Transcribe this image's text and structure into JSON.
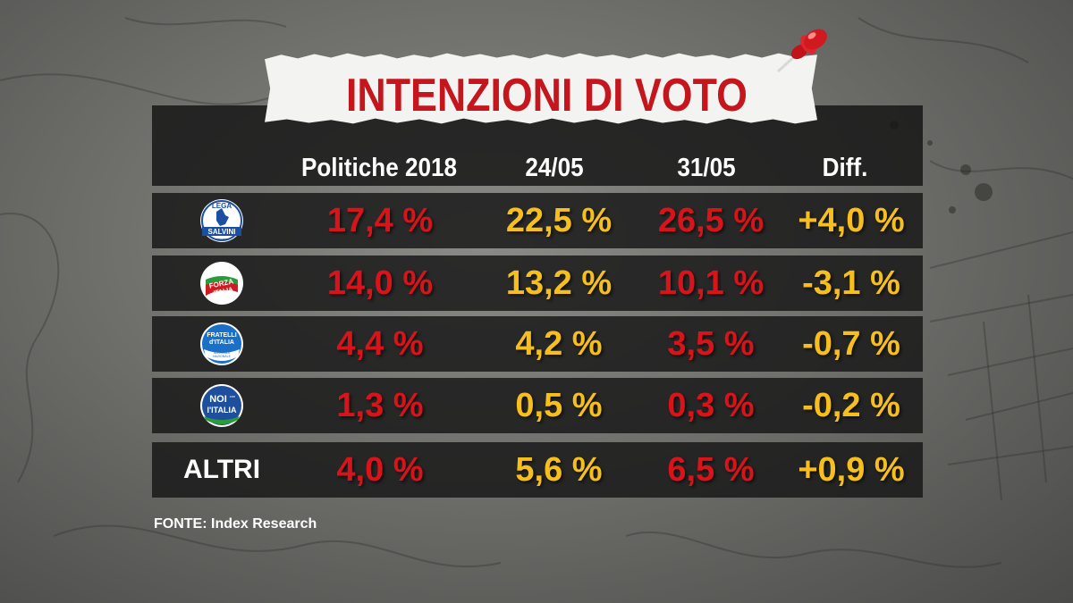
{
  "title": "INTENZIONI DI VOTO",
  "source": "FONTE:  Index Research",
  "colors": {
    "title": "#c4161c",
    "value_red": "#d8141a",
    "value_yellow": "#f6bf1d",
    "row_bg": "#181818"
  },
  "chart_data": {
    "type": "table",
    "columns": [
      "Politiche 2018",
      "24/05",
      "31/05",
      "Diff."
    ],
    "rows": [
      {
        "party": "Lega Salvini Premier",
        "logo_icon": "lega-logo-icon",
        "logo_text": [
          "LEGA",
          "SALVINI",
          "PREMIER"
        ],
        "values": [
          "17,4 %",
          "22,5 %",
          "26,5 %",
          "+4,0 %"
        ]
      },
      {
        "party": "Forza Italia",
        "logo_icon": "forza-italia-logo-icon",
        "logo_text": [
          "FORZA",
          "ITALIA"
        ],
        "values": [
          "14,0 %",
          "13,2 %",
          "10,1 %",
          "-3,1 %"
        ]
      },
      {
        "party": "Fratelli d'Italia",
        "logo_icon": "fratelli-italia-logo-icon",
        "logo_text": [
          "FRATELLI",
          "d'ITALIA",
          "ALLEANZA",
          "NAZIONALE"
        ],
        "values": [
          "4,4 %",
          "4,2 %",
          "3,5 %",
          "-0,7 %"
        ]
      },
      {
        "party": "Noi con l'Italia",
        "logo_icon": "noi-con-italia-logo-icon",
        "logo_text": [
          "NOI",
          "con",
          "l'ITALIA"
        ],
        "values": [
          "1,3 %",
          "0,5 %",
          "0,3 %",
          "-0,2 %"
        ]
      },
      {
        "party": "ALTRI",
        "label": "ALTRI",
        "values": [
          "4,0 %",
          "5,6 %",
          "6,5 %",
          "+0,9 %"
        ]
      }
    ],
    "cell_colors": [
      [
        "red",
        "yellow",
        "red",
        "yellow"
      ],
      [
        "red",
        "yellow",
        "red",
        "yellow"
      ],
      [
        "red",
        "yellow",
        "red",
        "yellow"
      ],
      [
        "red",
        "yellow",
        "red",
        "yellow"
      ],
      [
        "red",
        "yellow",
        "red",
        "yellow"
      ]
    ]
  }
}
